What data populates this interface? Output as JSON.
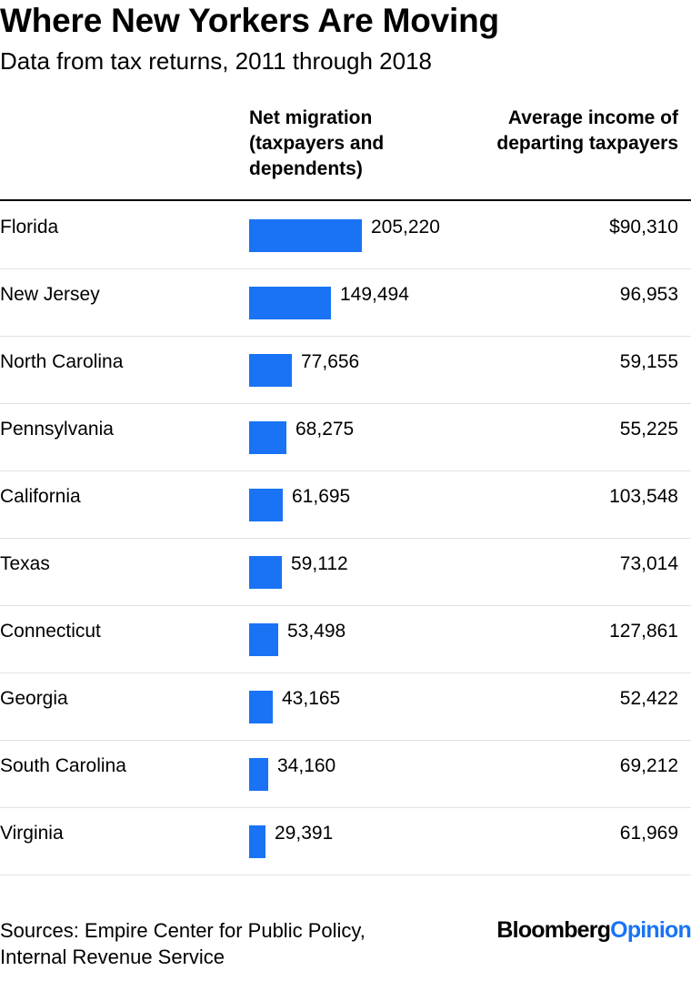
{
  "title": "Where New Yorkers Are Moving",
  "subtitle": "Data from tax returns, 2011 through 2018",
  "columns": {
    "migration": "Net migration (taxpayers and dependents)",
    "income": "Average income of departing taxpayers"
  },
  "source": "Sources: Empire Center for Public Policy, Internal Revenue Service",
  "logo": {
    "part1": "Bloomberg",
    "part2": "Opinion"
  },
  "colors": {
    "bar": "#1a73f5"
  },
  "chart_data": {
    "type": "bar",
    "orientation": "horizontal",
    "title": "Where New Yorkers Are Moving",
    "subtitle": "Data from tax returns, 2011 through 2018",
    "categories": [
      "Florida",
      "New Jersey",
      "North Carolina",
      "Pennsylvania",
      "California",
      "Texas",
      "Connecticut",
      "Georgia",
      "South Carolina",
      "Virginia"
    ],
    "values": [
      205220,
      149494,
      77656,
      68275,
      61695,
      59112,
      53498,
      43165,
      34160,
      29391
    ],
    "value_labels": [
      "205,220",
      "149,494",
      "77,656",
      "68,275",
      "61,695",
      "59,112",
      "53,498",
      "43,165",
      "34,160",
      "29,391"
    ],
    "income_values": [
      90310,
      96953,
      59155,
      55225,
      103548,
      73014,
      127861,
      52422,
      69212,
      61969
    ],
    "income_labels": [
      "$90,310",
      "96,953",
      "59,155",
      "55,225",
      "103,548",
      "73,014",
      "127,861",
      "52,422",
      "69,212",
      "61,969"
    ],
    "xlabel": "Net migration (taxpayers and dependents)",
    "ylabel": "",
    "xlim": [
      0,
      205220
    ]
  }
}
